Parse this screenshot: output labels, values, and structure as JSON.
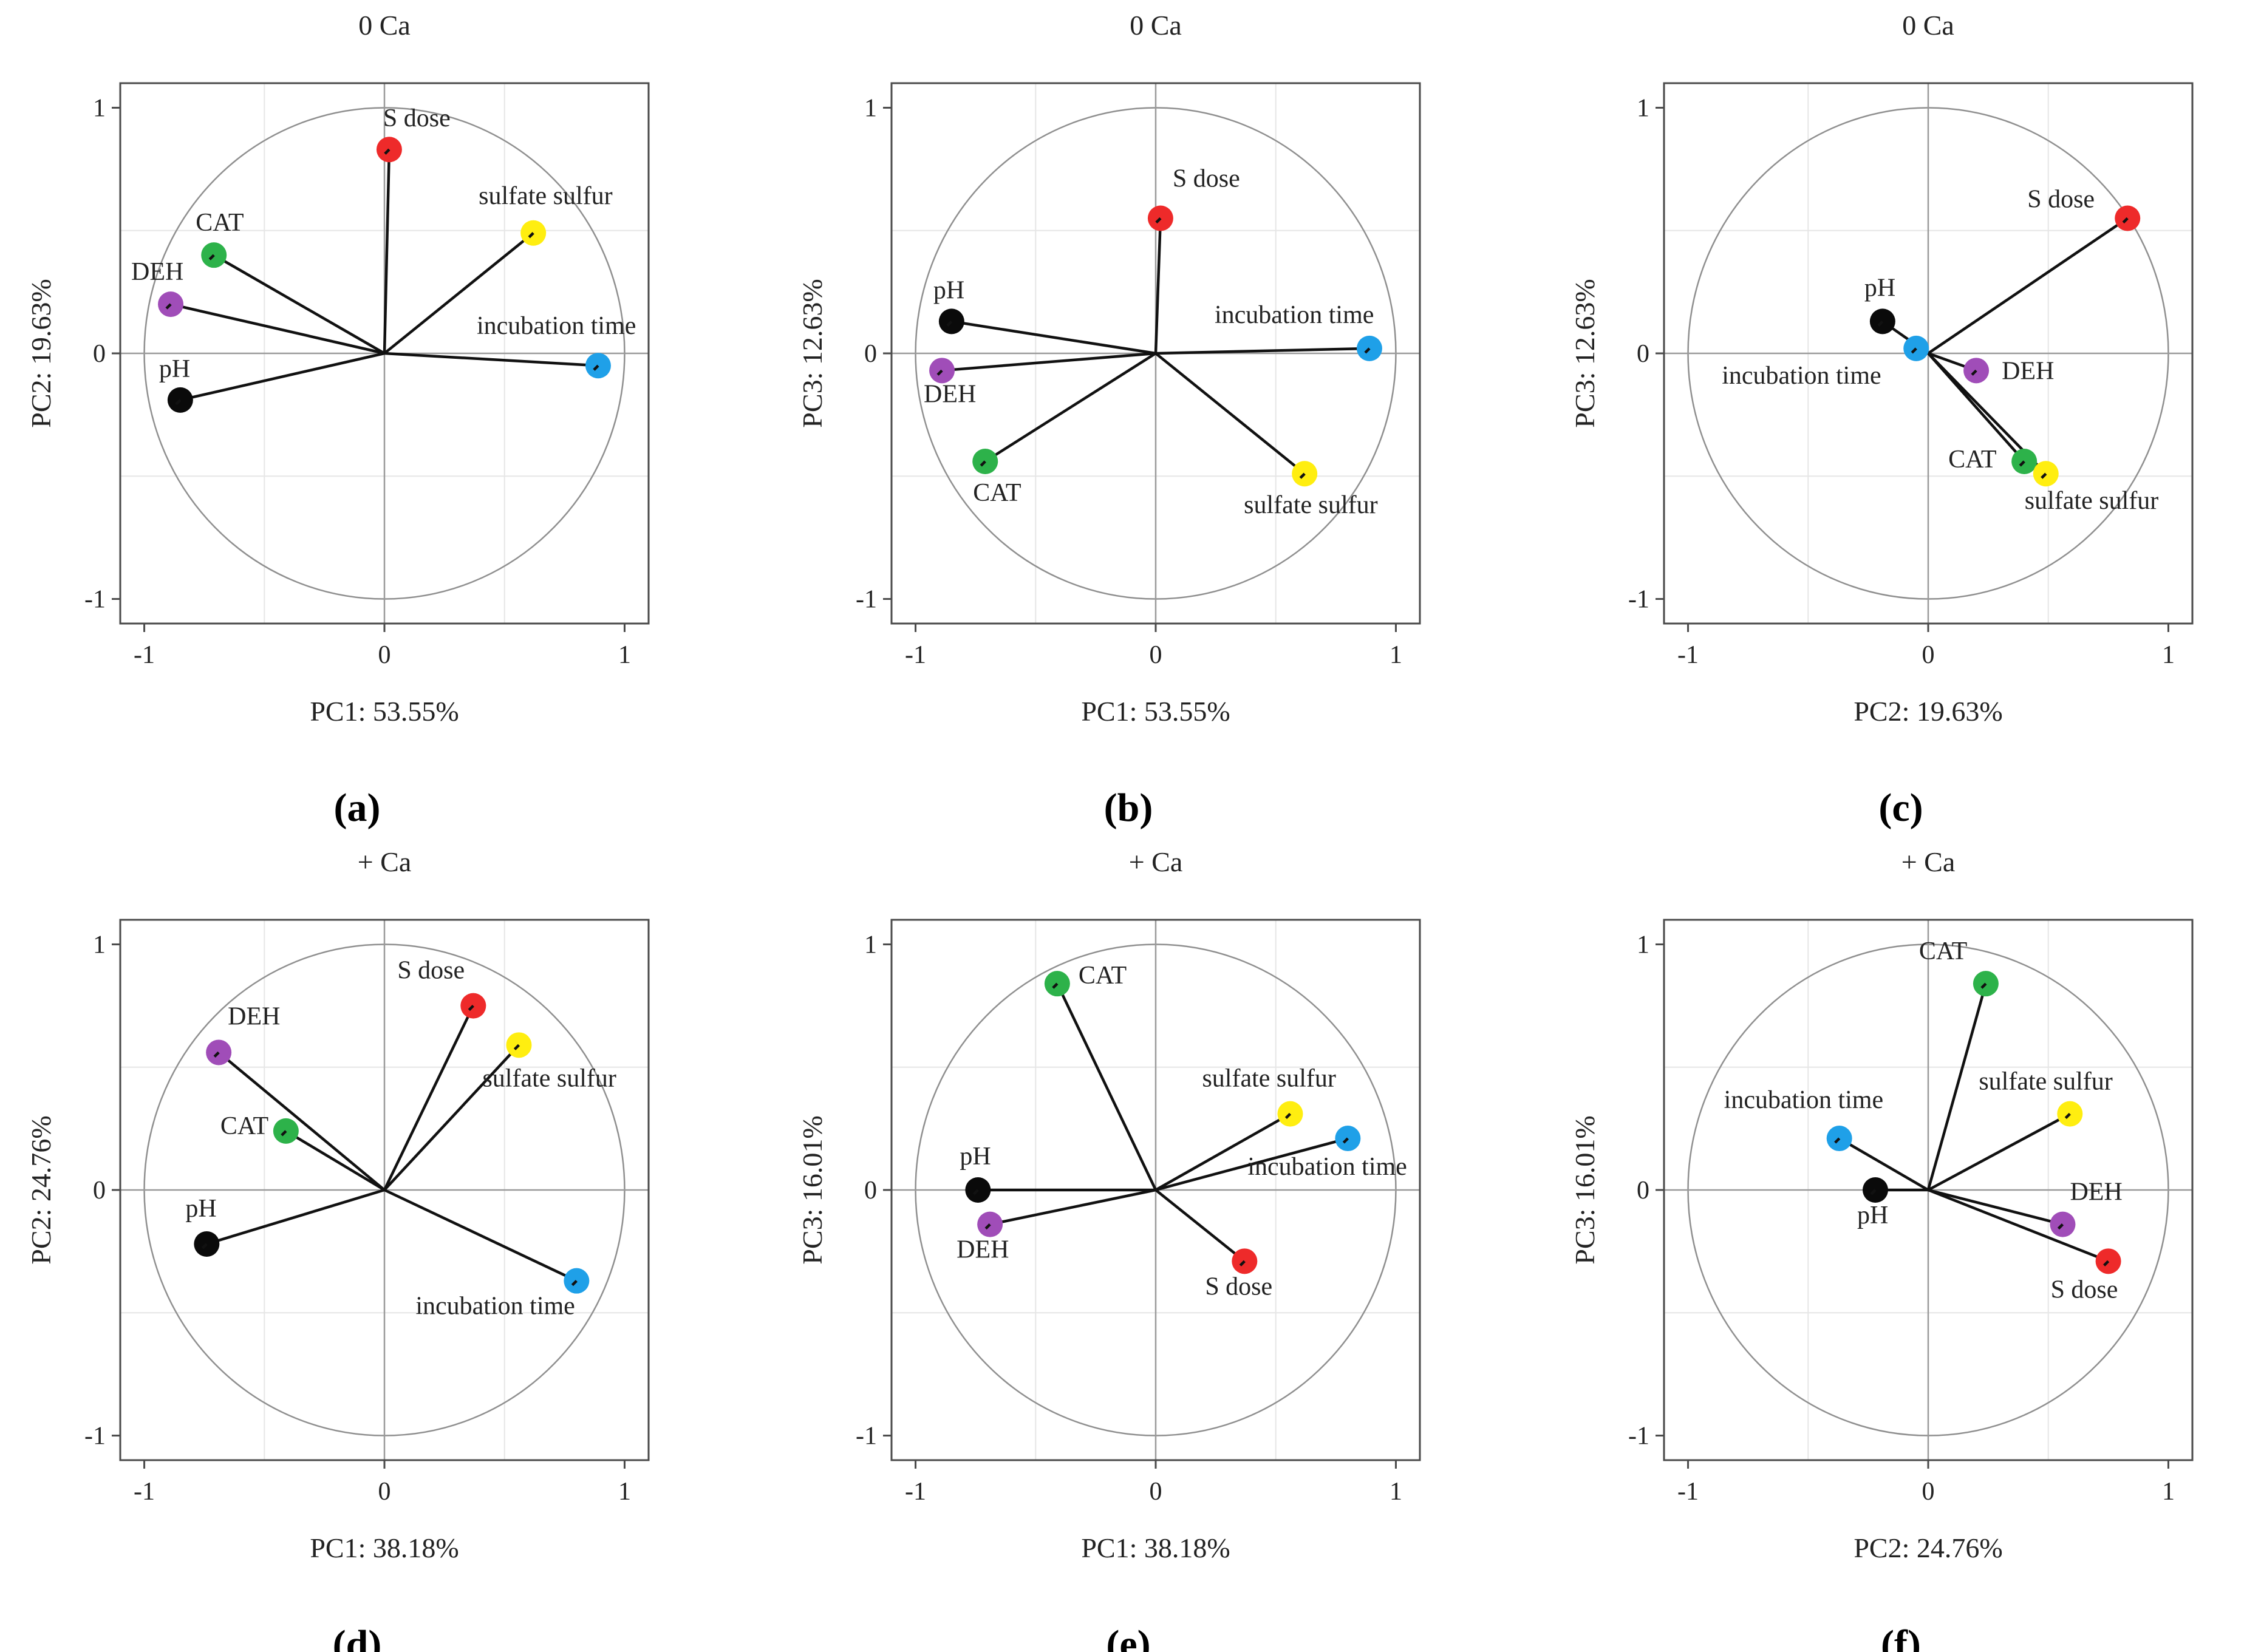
{
  "colors": {
    "S dose": "#ee2a2a",
    "sulfate sulfur": "#ffee10",
    "CAT": "#2db24a",
    "DEH": "#a04db8",
    "pH": "#0a0a0a",
    "incubation time": "#1fa0e8"
  },
  "chart_data": [
    {
      "type": "scatter",
      "panel": "(a)",
      "title": "0 Ca",
      "xlabel": "PC1: 53.55%",
      "ylabel": "PC2: 19.63%",
      "xlim": [
        -1.1,
        1.1
      ],
      "ylim": [
        -1.1,
        1.1
      ],
      "xticks": [
        "-1",
        "0",
        "1"
      ],
      "yticks": [
        "1",
        "0",
        "-1"
      ],
      "points": [
        {
          "name": "S dose",
          "x": 0.02,
          "y": 0.83
        },
        {
          "name": "sulfate sulfur",
          "x": 0.62,
          "y": 0.49
        },
        {
          "name": "CAT",
          "x": -0.71,
          "y": 0.4
        },
        {
          "name": "DEH",
          "x": -0.89,
          "y": 0.2
        },
        {
          "name": "incubation time",
          "x": 0.89,
          "y": -0.05
        },
        {
          "name": "pH",
          "x": -0.85,
          "y": -0.19
        }
      ]
    },
    {
      "type": "scatter",
      "panel": "(b)",
      "title": "0 Ca",
      "xlabel": "PC1: 53.55%",
      "ylabel": "PC3: 12.63%",
      "xlim": [
        -1.1,
        1.1
      ],
      "ylim": [
        -1.1,
        1.1
      ],
      "xticks": [
        "-1",
        "0",
        "1"
      ],
      "yticks": [
        "1",
        "0",
        "-1"
      ],
      "points": [
        {
          "name": "S dose",
          "x": 0.02,
          "y": 0.55
        },
        {
          "name": "pH",
          "x": -0.85,
          "y": 0.13
        },
        {
          "name": "incubation time",
          "x": 0.89,
          "y": 0.02
        },
        {
          "name": "DEH",
          "x": -0.89,
          "y": -0.07
        },
        {
          "name": "CAT",
          "x": -0.71,
          "y": -0.44
        },
        {
          "name": "sulfate sulfur",
          "x": 0.62,
          "y": -0.49
        }
      ]
    },
    {
      "type": "scatter",
      "panel": "(c)",
      "title": "0 Ca",
      "xlabel": "PC2: 19.63%",
      "ylabel": "PC3: 12.63%",
      "xlim": [
        -1.1,
        1.1
      ],
      "ylim": [
        -1.1,
        1.1
      ],
      "xticks": [
        "-1",
        "0",
        "1"
      ],
      "yticks": [
        "1",
        "0",
        "-1"
      ],
      "points": [
        {
          "name": "S dose",
          "x": 0.83,
          "y": 0.55
        },
        {
          "name": "pH",
          "x": -0.19,
          "y": 0.13
        },
        {
          "name": "incubation time",
          "x": -0.05,
          "y": 0.02
        },
        {
          "name": "DEH",
          "x": 0.2,
          "y": -0.07
        },
        {
          "name": "CAT",
          "x": 0.4,
          "y": -0.44
        },
        {
          "name": "sulfate sulfur",
          "x": 0.49,
          "y": -0.49
        }
      ]
    },
    {
      "type": "scatter",
      "panel": "(d)",
      "title": "+ Ca",
      "xlabel": "PC1: 38.18%",
      "ylabel": "PC2: 24.76%",
      "xlim": [
        -1.1,
        1.1
      ],
      "ylim": [
        -1.1,
        1.1
      ],
      "xticks": [
        "-1",
        "0",
        "1"
      ],
      "yticks": [
        "1",
        "0",
        "-1"
      ],
      "points": [
        {
          "name": "S dose",
          "x": 0.37,
          "y": 0.75
        },
        {
          "name": "sulfate sulfur",
          "x": 0.56,
          "y": 0.59
        },
        {
          "name": "DEH",
          "x": -0.69,
          "y": 0.56
        },
        {
          "name": "CAT",
          "x": -0.41,
          "y": 0.24
        },
        {
          "name": "pH",
          "x": -0.74,
          "y": -0.22
        },
        {
          "name": "incubation time",
          "x": 0.8,
          "y": -0.37
        }
      ]
    },
    {
      "type": "scatter",
      "panel": "(e)",
      "title": "+ Ca",
      "xlabel": "PC1: 38.18%",
      "ylabel": "PC3: 16.01%",
      "xlim": [
        -1.1,
        1.1
      ],
      "ylim": [
        -1.1,
        1.1
      ],
      "xticks": [
        "-1",
        "0",
        "1"
      ],
      "yticks": [
        "1",
        "0",
        "-1"
      ],
      "points": [
        {
          "name": "CAT",
          "x": -0.41,
          "y": 0.84
        },
        {
          "name": "sulfate sulfur",
          "x": 0.56,
          "y": 0.31
        },
        {
          "name": "incubation time",
          "x": 0.8,
          "y": 0.21
        },
        {
          "name": "pH",
          "x": -0.74,
          "y": 0.0
        },
        {
          "name": "DEH",
          "x": -0.69,
          "y": -0.14
        },
        {
          "name": "S dose",
          "x": 0.37,
          "y": -0.29
        }
      ]
    },
    {
      "type": "scatter",
      "panel": "(f)",
      "title": "+ Ca",
      "xlabel": "PC2: 24.76%",
      "ylabel": "PC3: 16.01%",
      "xlim": [
        -1.1,
        1.1
      ],
      "ylim": [
        -1.1,
        1.1
      ],
      "xticks": [
        "-1",
        "0",
        "1"
      ],
      "yticks": [
        "1",
        "0",
        "-1"
      ],
      "points": [
        {
          "name": "CAT",
          "x": 0.24,
          "y": 0.84
        },
        {
          "name": "sulfate sulfur",
          "x": 0.59,
          "y": 0.31
        },
        {
          "name": "incubation time",
          "x": -0.37,
          "y": 0.21
        },
        {
          "name": "pH",
          "x": -0.22,
          "y": 0.0
        },
        {
          "name": "DEH",
          "x": 0.56,
          "y": -0.14
        },
        {
          "name": "S dose",
          "x": 0.75,
          "y": -0.29
        }
      ]
    }
  ]
}
